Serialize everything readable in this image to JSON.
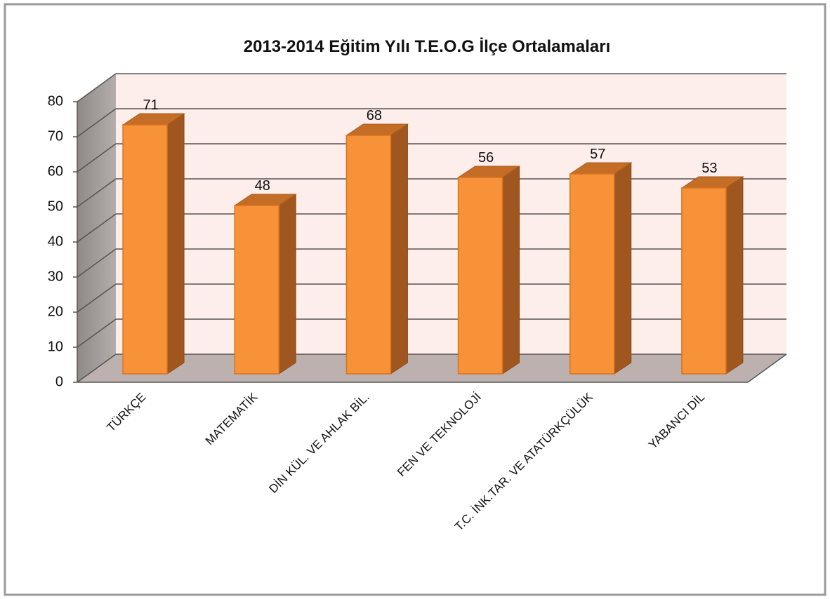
{
  "chart_data": {
    "type": "bar",
    "title": "2013-2014 Eğitim Yılı T.E.O.G İlçe Ortalamaları",
    "categories": [
      "TÜRKÇE",
      "MATEMATİK",
      "DİN KÜL. VE AHLAK BİL.",
      "FEN VE TEKNOLOJİ",
      "T.C. İNK.TAR. VE ATATÜRKÇÜLÜK",
      "YABANCI DİL"
    ],
    "values": [
      71,
      48,
      68,
      56,
      57,
      53
    ],
    "color": "#f79239",
    "ylim": [
      0,
      80
    ],
    "yticks": [
      0,
      10,
      20,
      30,
      40,
      50,
      60,
      70,
      80
    ],
    "grid": true
  }
}
